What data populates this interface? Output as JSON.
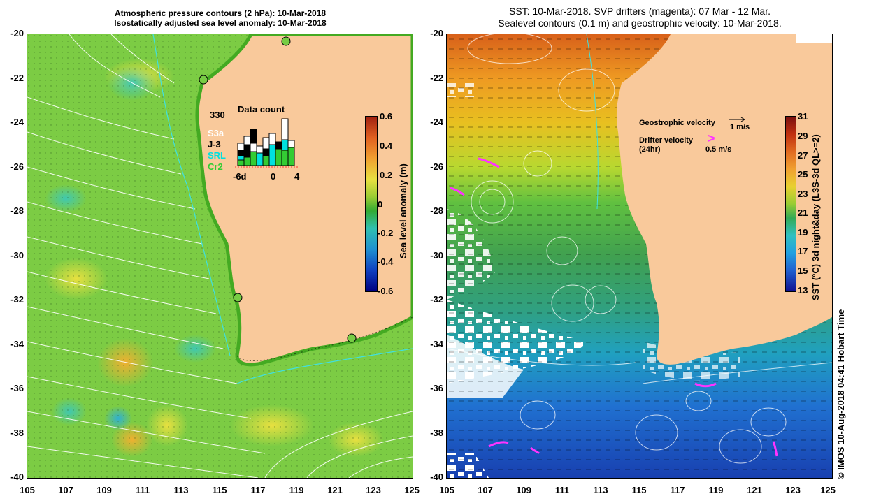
{
  "left_panel": {
    "title_line1": "Atmospheric pressure contours (2 hPa): 10-Mar-2018",
    "title_line2": "Isostatically adjusted sea level anomaly: 10-Mar-2018",
    "colorbar_label": "Sea level anomaly (m)",
    "colorbar_ticks": [
      "0.6",
      "0.4",
      "0.2",
      "0",
      "-0.2",
      "-0.4",
      "-0.6"
    ],
    "inset": {
      "max_label": "330",
      "title": "Data count",
      "legend": [
        {
          "label": "S3a",
          "color": "#ffffff"
        },
        {
          "label": "J-3",
          "color": "#000000"
        },
        {
          "label": "SRL",
          "color": "#00e0e0"
        },
        {
          "label": "Cr2",
          "color": "#33cc33"
        }
      ],
      "x_ticks": [
        "-6d",
        "0",
        "4"
      ]
    }
  },
  "right_panel": {
    "title_line1": "SST: 10-Mar-2018. SVP drifters (magenta): 07 Mar - 12 Mar.",
    "title_line2": "Sealevel contours (0.1 m) and geostrophic velocity: 10-Mar-2018.",
    "colorbar_label": "SST (°C) 3d night&day (L3S-3d QL>=2)",
    "colorbar_ticks": [
      "31",
      "29",
      "27",
      "25",
      "23",
      "21",
      "19",
      "17",
      "15",
      "13"
    ],
    "legend": {
      "geo_label": "Geostrophic velocity",
      "geo_speed": "1 m/s",
      "drifter_label": "Drifter velocity",
      "drifter_sub": "(24hr)",
      "drifter_symbol": ">",
      "drifter_speed": "0.5 m/s"
    },
    "credit": "© IMOS 10-Aug-2018 04:41 Hobart Time"
  },
  "y_ticks": [
    "-20",
    "-22",
    "-24",
    "-26",
    "-28",
    "-30",
    "-32",
    "-34",
    "-36",
    "-38",
    "-40"
  ],
  "x_ticks": [
    "105",
    "107",
    "109",
    "111",
    "113",
    "115",
    "117",
    "119",
    "121",
    "123",
    "125"
  ],
  "colors": {
    "land": "#f9c99b",
    "ocean_green": "#77cc44",
    "magenta": "#ff33ff"
  }
}
